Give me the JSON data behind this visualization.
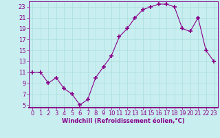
{
  "x": [
    0,
    1,
    2,
    3,
    4,
    5,
    6,
    7,
    8,
    9,
    10,
    11,
    12,
    13,
    14,
    15,
    16,
    17,
    18,
    19,
    20,
    21,
    22,
    23
  ],
  "y": [
    11,
    11,
    9,
    10,
    8,
    7,
    5,
    6,
    10,
    12,
    14,
    17.5,
    19,
    21,
    22.5,
    23,
    23.5,
    23.5,
    23,
    19,
    18.5,
    21,
    15,
    13
  ],
  "line_color": "#880088",
  "marker": "+",
  "marker_size": 4,
  "bg_color": "#c8eef0",
  "grid_color": "#aadddd",
  "xlabel": "Windchill (Refroidissement éolien,°C)",
  "xlabel_fontsize": 6.0,
  "tick_fontsize": 6.0,
  "xlim": [
    -0.5,
    23.5
  ],
  "ylim": [
    4.5,
    24
  ],
  "yticks": [
    5,
    7,
    9,
    11,
    13,
    15,
    17,
    19,
    21,
    23
  ],
  "xticks": [
    0,
    1,
    2,
    3,
    4,
    5,
    6,
    7,
    8,
    9,
    10,
    11,
    12,
    13,
    14,
    15,
    16,
    17,
    18,
    19,
    20,
    21,
    22,
    23
  ],
  "spine_color": "#880088",
  "axis_bg": "#c8eef0"
}
